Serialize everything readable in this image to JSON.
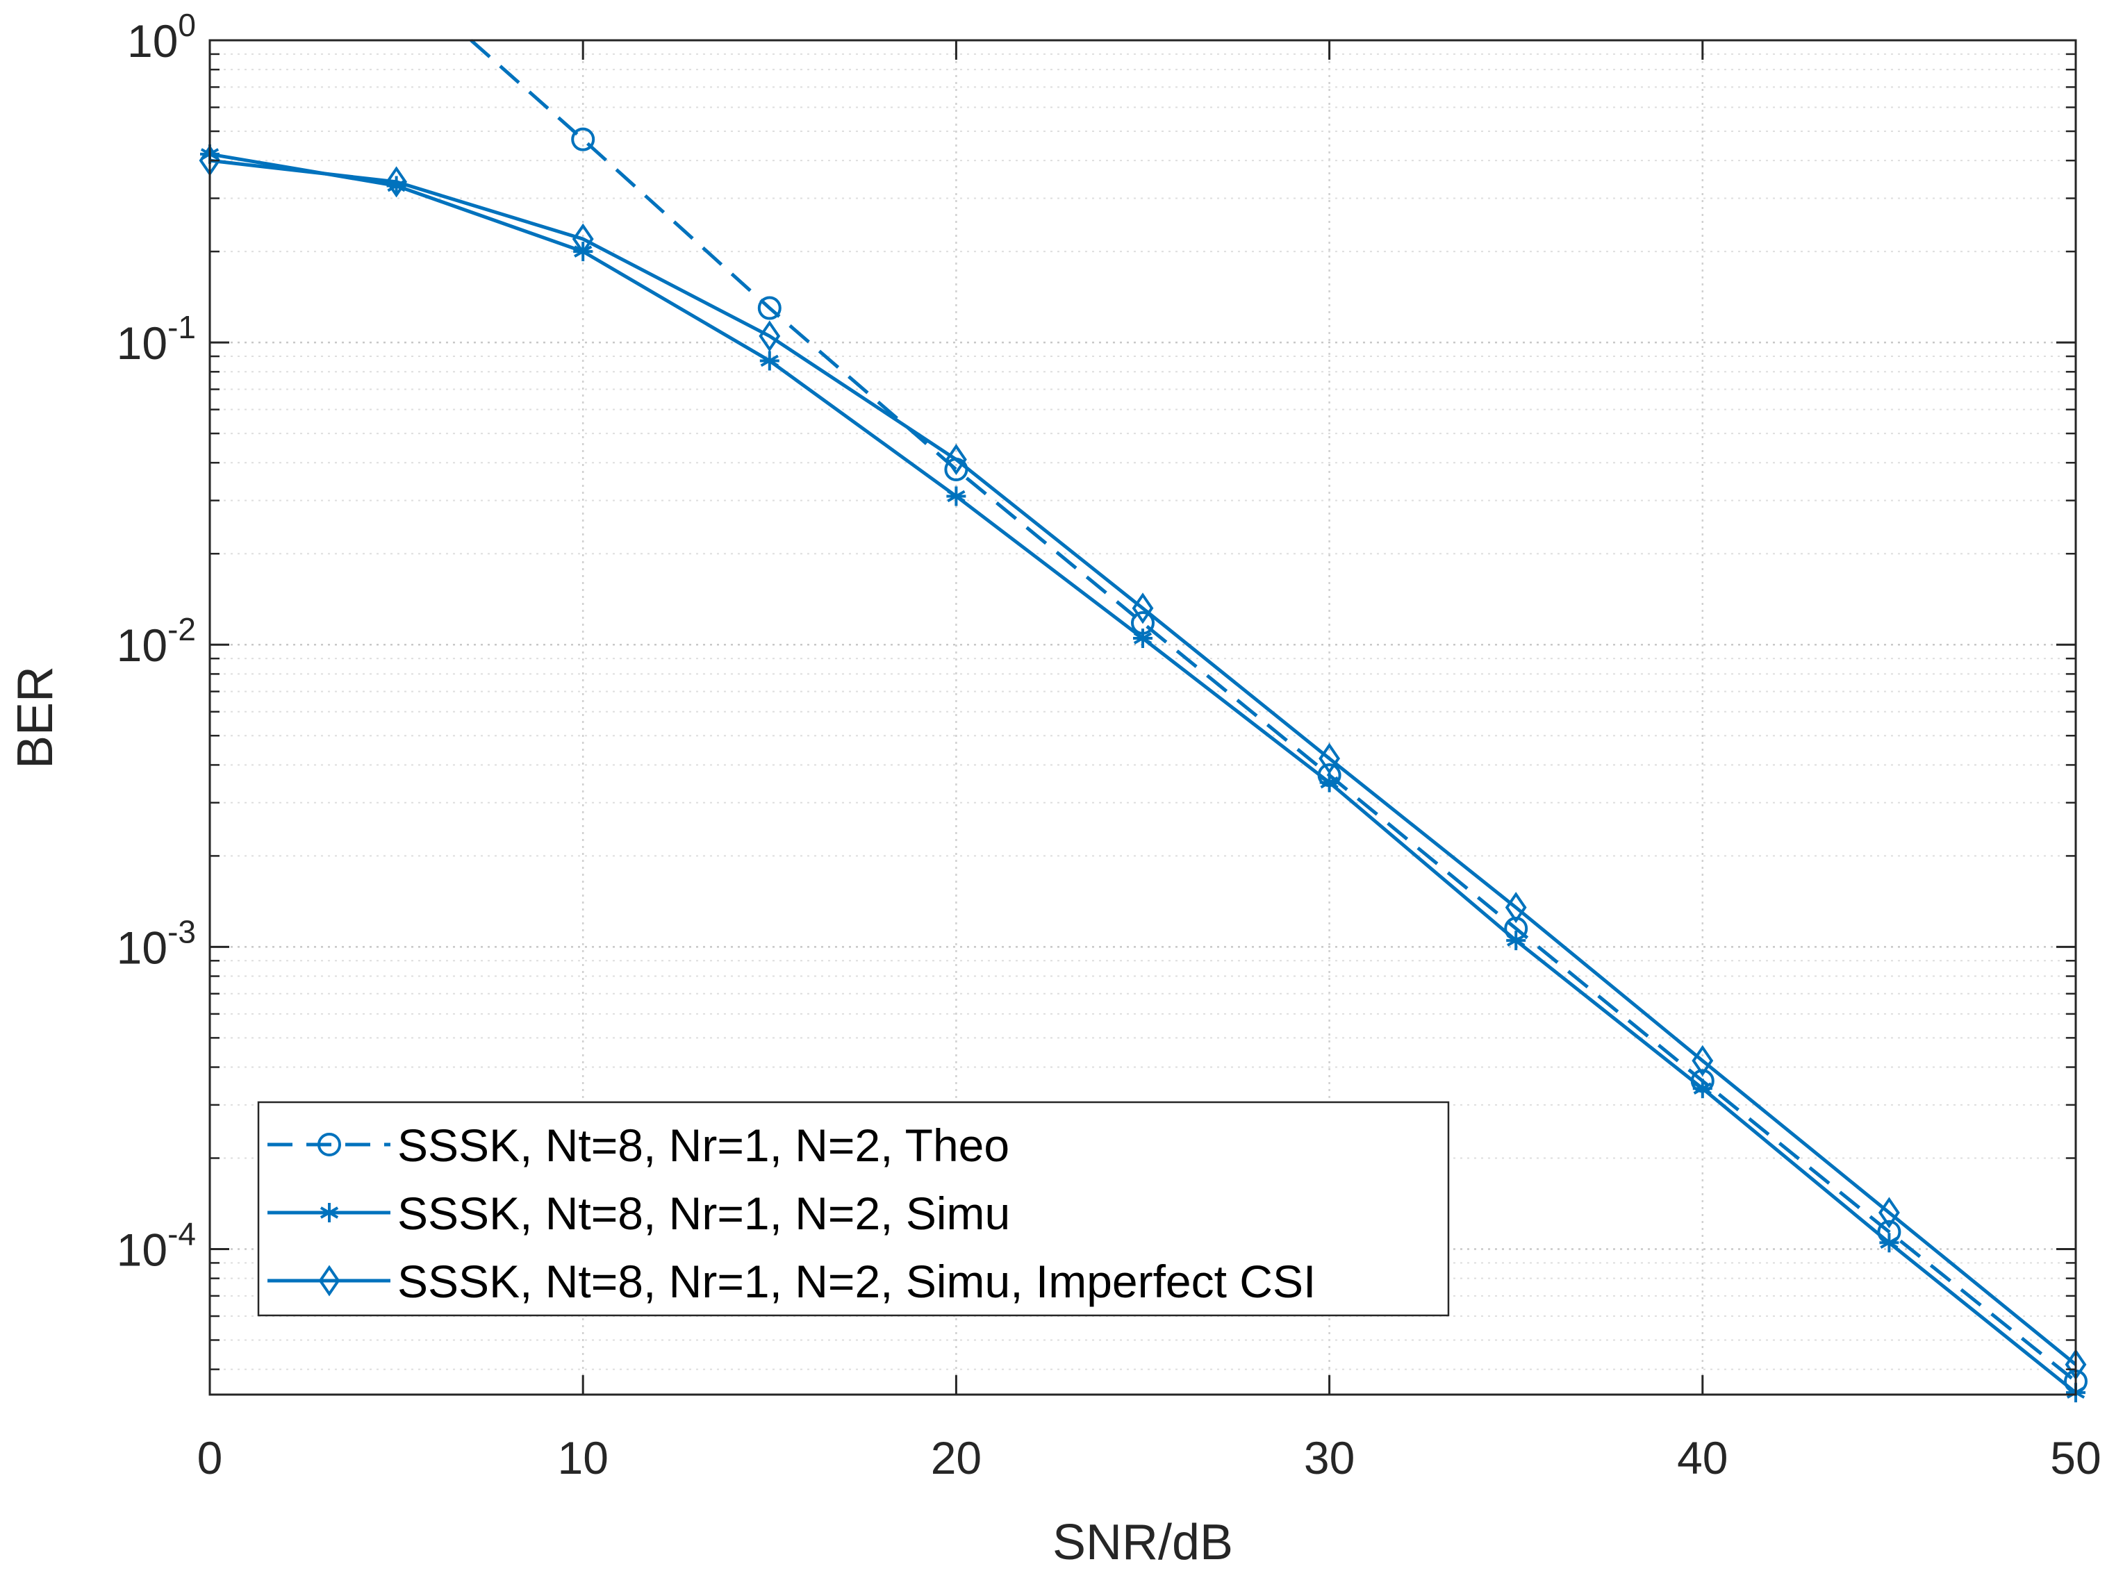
{
  "chart_data": {
    "type": "line",
    "title": "",
    "xlabel": "SNR/dB",
    "ylabel": "BER",
    "xscale": "linear",
    "yscale": "log",
    "xlim": [
      0,
      50
    ],
    "ylim": [
      3.3e-05,
      1
    ],
    "grid": true,
    "minor_grid": true,
    "legend_location": "bottom-left",
    "x_ticks": [
      {
        "value": 0,
        "label": "0"
      },
      {
        "value": 10,
        "label": "10"
      },
      {
        "value": 20,
        "label": "20"
      },
      {
        "value": 30,
        "label": "30"
      },
      {
        "value": 40,
        "label": "40"
      },
      {
        "value": 50,
        "label": "50"
      }
    ],
    "y_ticks": [
      {
        "value": 1,
        "base": "10",
        "exp": "0"
      },
      {
        "value": 0.1,
        "base": "10",
        "exp": "-1"
      },
      {
        "value": 0.01,
        "base": "10",
        "exp": "-2"
      },
      {
        "value": 0.001,
        "base": "10",
        "exp": "-3"
      },
      {
        "value": 0.0001,
        "base": "10",
        "exp": "-4"
      }
    ],
    "x": [
      0,
      5,
      10,
      15,
      20,
      25,
      30,
      35,
      40,
      45,
      50
    ],
    "series": [
      {
        "name": "SSSK, Nt=8, Nr=1, N=2, Theo",
        "line_style": "dashed",
        "marker": "circle",
        "color": "#0072BD",
        "start_point": {
          "x": 7,
          "y": 1.0
        },
        "x": [
          10,
          15,
          20,
          25,
          30,
          35,
          40,
          45,
          50
        ],
        "values": [
          0.47,
          0.13,
          0.038,
          0.0118,
          0.0037,
          0.00115,
          0.00036,
          0.000114,
          3.65e-05
        ]
      },
      {
        "name": "SSSK, Nt=8, Nr=1, N=2, Simu",
        "line_style": "solid",
        "marker": "asterisk",
        "color": "#0072BD",
        "x": [
          0,
          5,
          10,
          15,
          20,
          25,
          30,
          35,
          40,
          45,
          50
        ],
        "values": [
          0.42,
          0.33,
          0.2,
          0.087,
          0.031,
          0.0105,
          0.0035,
          0.00105,
          0.00034,
          0.000105,
          3.35e-05
        ]
      },
      {
        "name": "SSSK, Nt=8, Nr=1, N=2, Simu, Imperfect CSI",
        "line_style": "solid",
        "marker": "diamond",
        "color": "#0072BD",
        "x": [
          0,
          5,
          10,
          15,
          20,
          25,
          30,
          35,
          40,
          45,
          50
        ],
        "values": [
          0.4,
          0.34,
          0.22,
          0.105,
          0.041,
          0.0132,
          0.0042,
          0.00135,
          0.00042,
          0.000132,
          4.15e-05
        ]
      }
    ]
  }
}
